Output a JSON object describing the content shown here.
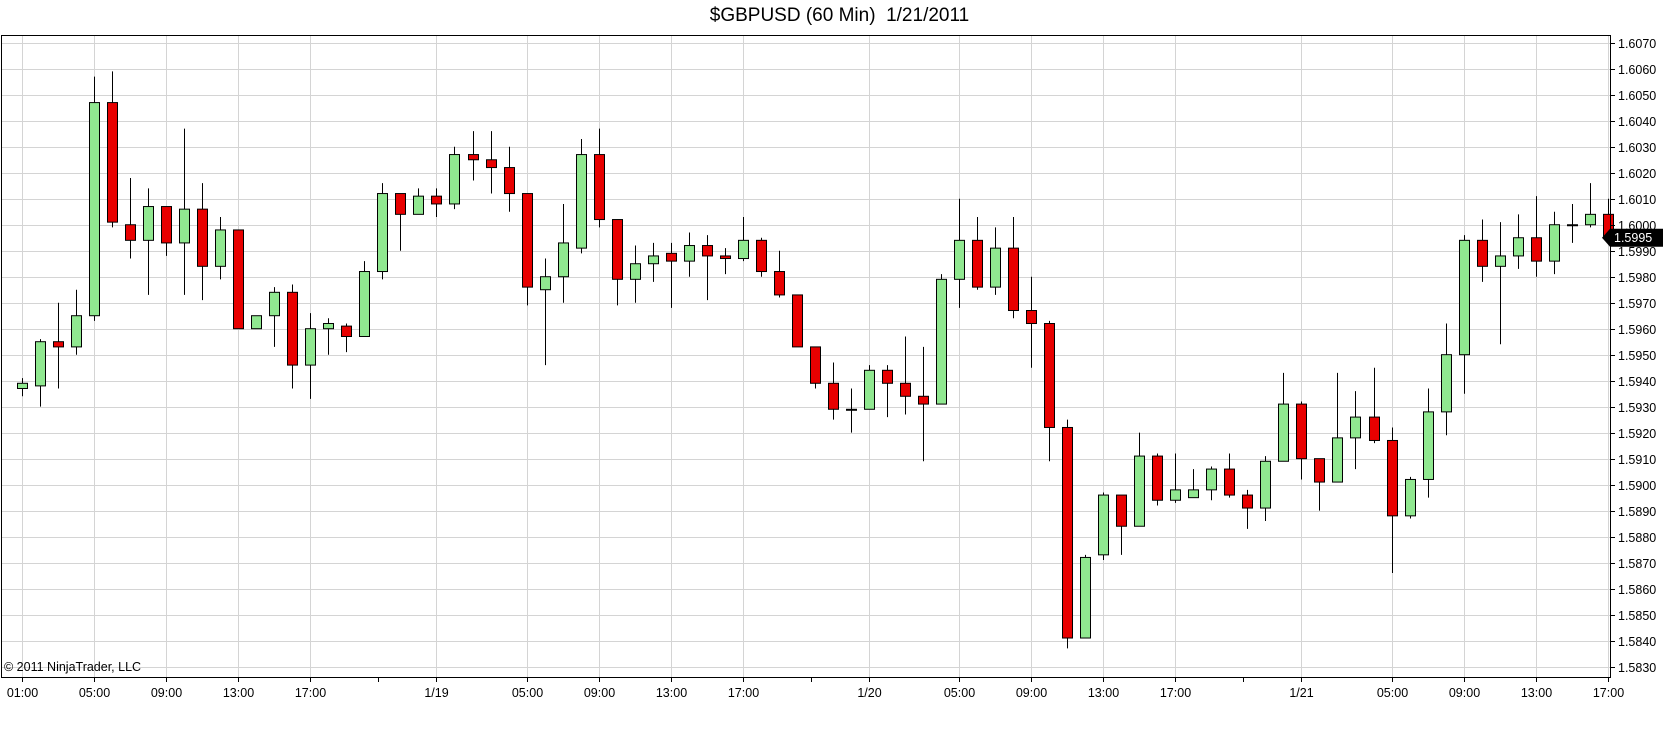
{
  "chart_data": {
    "type": "candlestick",
    "title": "$GBPUSD (60 Min)  1/21/2011",
    "copyright": "© 2011 NinjaTrader, LLC",
    "ylim": [
      1.5826,
      1.6073
    ],
    "y_ticks": [
      "1.5830",
      "1.5840",
      "1.5850",
      "1.5860",
      "1.5870",
      "1.5880",
      "1.5890",
      "1.5900",
      "1.5910",
      "1.5920",
      "1.5930",
      "1.5940",
      "1.5950",
      "1.5960",
      "1.5970",
      "1.5980",
      "1.5990",
      "1.6000",
      "1.6010",
      "1.6020",
      "1.6030",
      "1.6040",
      "1.6050",
      "1.6060",
      "1.6070"
    ],
    "x_ticks": [
      {
        "bar": 0,
        "label": "01:00"
      },
      {
        "bar": 4,
        "label": "05:00"
      },
      {
        "bar": 8,
        "label": "09:00"
      },
      {
        "bar": 12,
        "label": "13:00"
      },
      {
        "bar": 16,
        "label": "17:00"
      },
      {
        "bar": 23,
        "label": "1/19"
      },
      {
        "bar": 28,
        "label": "05:00"
      },
      {
        "bar": 32,
        "label": "09:00"
      },
      {
        "bar": 36,
        "label": "13:00"
      },
      {
        "bar": 40,
        "label": "17:00"
      },
      {
        "bar": 47,
        "label": "1/20"
      },
      {
        "bar": 52,
        "label": "05:00"
      },
      {
        "bar": 56,
        "label": "09:00"
      },
      {
        "bar": 60,
        "label": "13:00"
      },
      {
        "bar": 64,
        "label": "17:00"
      },
      {
        "bar": 71,
        "label": "1/21"
      },
      {
        "bar": 76,
        "label": "05:00"
      },
      {
        "bar": 80,
        "label": "09:00"
      },
      {
        "bar": 84,
        "label": "13:00"
      },
      {
        "bar": 88,
        "label": "17:00"
      }
    ],
    "day_separators": [
      20,
      44,
      68
    ],
    "last_price": "1.5995",
    "up_color": "#90e890",
    "down_color": "#e80000",
    "candles": [
      {
        "o": 1.5937,
        "h": 1.5941,
        "l": 1.5934,
        "c": 1.5939
      },
      {
        "o": 1.5938,
        "h": 1.5956,
        "l": 1.593,
        "c": 1.5955
      },
      {
        "o": 1.5955,
        "h": 1.597,
        "l": 1.5937,
        "c": 1.5953
      },
      {
        "o": 1.5953,
        "h": 1.5975,
        "l": 1.595,
        "c": 1.5965
      },
      {
        "o": 1.5965,
        "h": 1.6057,
        "l": 1.5963,
        "c": 1.6047
      },
      {
        "o": 1.6047,
        "h": 1.6059,
        "l": 1.5999,
        "c": 1.6001
      },
      {
        "o": 1.6,
        "h": 1.6018,
        "l": 1.5987,
        "c": 1.5994
      },
      {
        "o": 1.5994,
        "h": 1.6014,
        "l": 1.5973,
        "c": 1.6007
      },
      {
        "o": 1.6007,
        "h": 1.6007,
        "l": 1.5988,
        "c": 1.5993
      },
      {
        "o": 1.5993,
        "h": 1.6037,
        "l": 1.5973,
        "c": 1.6006
      },
      {
        "o": 1.6006,
        "h": 1.6016,
        "l": 1.5971,
        "c": 1.5984
      },
      {
        "o": 1.5984,
        "h": 1.6003,
        "l": 1.5979,
        "c": 1.5998
      },
      {
        "o": 1.5998,
        "h": 1.5998,
        "l": 1.596,
        "c": 1.596
      },
      {
        "o": 1.596,
        "h": 1.5965,
        "l": 1.596,
        "c": 1.5965
      },
      {
        "o": 1.5965,
        "h": 1.5976,
        "l": 1.5953,
        "c": 1.5974
      },
      {
        "o": 1.5974,
        "h": 1.5977,
        "l": 1.5937,
        "c": 1.5946
      },
      {
        "o": 1.5946,
        "h": 1.5966,
        "l": 1.5933,
        "c": 1.596
      },
      {
        "o": 1.596,
        "h": 1.5964,
        "l": 1.595,
        "c": 1.5962
      },
      {
        "o": 1.5961,
        "h": 1.5962,
        "l": 1.5951,
        "c": 1.5957
      },
      {
        "o": 1.5957,
        "h": 1.5986,
        "l": 1.5957,
        "c": 1.5982
      },
      {
        "o": 1.5982,
        "h": 1.6016,
        "l": 1.5979,
        "c": 1.6012
      },
      {
        "o": 1.6012,
        "h": 1.6012,
        "l": 1.599,
        "c": 1.6004
      },
      {
        "o": 1.6004,
        "h": 1.6014,
        "l": 1.6004,
        "c": 1.6011
      },
      {
        "o": 1.6011,
        "h": 1.6014,
        "l": 1.6003,
        "c": 1.6008
      },
      {
        "o": 1.6008,
        "h": 1.603,
        "l": 1.6006,
        "c": 1.6027
      },
      {
        "o": 1.6027,
        "h": 1.6036,
        "l": 1.6017,
        "c": 1.6025
      },
      {
        "o": 1.6025,
        "h": 1.6036,
        "l": 1.6012,
        "c": 1.6022
      },
      {
        "o": 1.6022,
        "h": 1.603,
        "l": 1.6005,
        "c": 1.6012
      },
      {
        "o": 1.6012,
        "h": 1.6012,
        "l": 1.5969,
        "c": 1.5976
      },
      {
        "o": 1.5975,
        "h": 1.5987,
        "l": 1.5946,
        "c": 1.598
      },
      {
        "o": 1.598,
        "h": 1.6008,
        "l": 1.597,
        "c": 1.5993
      },
      {
        "o": 1.5991,
        "h": 1.6033,
        "l": 1.5989,
        "c": 1.6027
      },
      {
        "o": 1.6027,
        "h": 1.6037,
        "l": 1.5999,
        "c": 1.6002
      },
      {
        "o": 1.6002,
        "h": 1.6002,
        "l": 1.5969,
        "c": 1.5979
      },
      {
        "o": 1.5979,
        "h": 1.5992,
        "l": 1.597,
        "c": 1.5985
      },
      {
        "o": 1.5985,
        "h": 1.5993,
        "l": 1.5978,
        "c": 1.5988
      },
      {
        "o": 1.5989,
        "h": 1.5993,
        "l": 1.5968,
        "c": 1.5986
      },
      {
        "o": 1.5986,
        "h": 1.5997,
        "l": 1.598,
        "c": 1.5992
      },
      {
        "o": 1.5992,
        "h": 1.5996,
        "l": 1.5971,
        "c": 1.5988
      },
      {
        "o": 1.5988,
        "h": 1.5991,
        "l": 1.5981,
        "c": 1.5987
      },
      {
        "o": 1.5987,
        "h": 1.6003,
        "l": 1.5986,
        "c": 1.5994
      },
      {
        "o": 1.5994,
        "h": 1.5995,
        "l": 1.598,
        "c": 1.5982
      },
      {
        "o": 1.5982,
        "h": 1.599,
        "l": 1.5972,
        "c": 1.5973
      },
      {
        "o": 1.5973,
        "h": 1.5973,
        "l": 1.5953,
        "c": 1.5953
      },
      {
        "o": 1.5953,
        "h": 1.5953,
        "l": 1.5937,
        "c": 1.5939
      },
      {
        "o": 1.5939,
        "h": 1.5947,
        "l": 1.5925,
        "c": 1.5929
      },
      {
        "o": 1.5929,
        "h": 1.5937,
        "l": 1.592,
        "c": 1.5929
      },
      {
        "o": 1.5929,
        "h": 1.5946,
        "l": 1.5929,
        "c": 1.5944
      },
      {
        "o": 1.5944,
        "h": 1.5946,
        "l": 1.5926,
        "c": 1.5939
      },
      {
        "o": 1.5939,
        "h": 1.5957,
        "l": 1.5927,
        "c": 1.5934
      },
      {
        "o": 1.5934,
        "h": 1.5953,
        "l": 1.5909,
        "c": 1.5931
      },
      {
        "o": 1.5931,
        "h": 1.5981,
        "l": 1.5931,
        "c": 1.5979
      },
      {
        "o": 1.5979,
        "h": 1.601,
        "l": 1.5968,
        "c": 1.5994
      },
      {
        "o": 1.5994,
        "h": 1.6003,
        "l": 1.5975,
        "c": 1.5976
      },
      {
        "o": 1.5976,
        "h": 1.5999,
        "l": 1.5973,
        "c": 1.5991
      },
      {
        "o": 1.5991,
        "h": 1.6003,
        "l": 1.5964,
        "c": 1.5967
      },
      {
        "o": 1.5967,
        "h": 1.598,
        "l": 1.5945,
        "c": 1.5962
      },
      {
        "o": 1.5962,
        "h": 1.5963,
        "l": 1.5909,
        "c": 1.5922
      },
      {
        "o": 1.5922,
        "h": 1.5925,
        "l": 1.5837,
        "c": 1.5841
      },
      {
        "o": 1.5841,
        "h": 1.5873,
        "l": 1.5841,
        "c": 1.5872
      },
      {
        "o": 1.5873,
        "h": 1.5897,
        "l": 1.5871,
        "c": 1.5896
      },
      {
        "o": 1.5896,
        "h": 1.5896,
        "l": 1.5873,
        "c": 1.5884
      },
      {
        "o": 1.5884,
        "h": 1.592,
        "l": 1.5884,
        "c": 1.5911
      },
      {
        "o": 1.5911,
        "h": 1.5912,
        "l": 1.5892,
        "c": 1.5894
      },
      {
        "o": 1.5894,
        "h": 1.5912,
        "l": 1.5893,
        "c": 1.5898
      },
      {
        "o": 1.5895,
        "h": 1.5906,
        "l": 1.5895,
        "c": 1.5898
      },
      {
        "o": 1.5898,
        "h": 1.5907,
        "l": 1.5894,
        "c": 1.5906
      },
      {
        "o": 1.5906,
        "h": 1.5912,
        "l": 1.5895,
        "c": 1.5896
      },
      {
        "o": 1.5896,
        "h": 1.5898,
        "l": 1.5883,
        "c": 1.5891
      },
      {
        "o": 1.5891,
        "h": 1.5911,
        "l": 1.5886,
        "c": 1.5909
      },
      {
        "o": 1.5909,
        "h": 1.5943,
        "l": 1.5909,
        "c": 1.5931
      },
      {
        "o": 1.5931,
        "h": 1.5932,
        "l": 1.5902,
        "c": 1.591
      },
      {
        "o": 1.591,
        "h": 1.591,
        "l": 1.589,
        "c": 1.5901
      },
      {
        "o": 1.5901,
        "h": 1.5943,
        "l": 1.5901,
        "c": 1.5918
      },
      {
        "o": 1.5918,
        "h": 1.5936,
        "l": 1.5906,
        "c": 1.5926
      },
      {
        "o": 1.5926,
        "h": 1.5945,
        "l": 1.5916,
        "c": 1.5917
      },
      {
        "o": 1.5917,
        "h": 1.5922,
        "l": 1.5866,
        "c": 1.5888
      },
      {
        "o": 1.5888,
        "h": 1.5903,
        "l": 1.5887,
        "c": 1.5902
      },
      {
        "o": 1.5902,
        "h": 1.5937,
        "l": 1.5895,
        "c": 1.5928
      },
      {
        "o": 1.5928,
        "h": 1.5962,
        "l": 1.5919,
        "c": 1.595
      },
      {
        "o": 1.595,
        "h": 1.5996,
        "l": 1.5935,
        "c": 1.5994
      },
      {
        "o": 1.5994,
        "h": 1.6002,
        "l": 1.5978,
        "c": 1.5984
      },
      {
        "o": 1.5984,
        "h": 1.6001,
        "l": 1.5954,
        "c": 1.5988
      },
      {
        "o": 1.5988,
        "h": 1.6004,
        "l": 1.5983,
        "c": 1.5995
      },
      {
        "o": 1.5995,
        "h": 1.6011,
        "l": 1.598,
        "c": 1.5986
      },
      {
        "o": 1.5986,
        "h": 1.6005,
        "l": 1.5981,
        "c": 1.6
      },
      {
        "o": 1.6,
        "h": 1.6008,
        "l": 1.5993,
        "c": 1.6
      },
      {
        "o": 1.6,
        "h": 1.6016,
        "l": 1.5999,
        "c": 1.6004
      },
      {
        "o": 1.6004,
        "h": 1.601,
        "l": 1.5993,
        "c": 1.5995
      }
    ]
  }
}
